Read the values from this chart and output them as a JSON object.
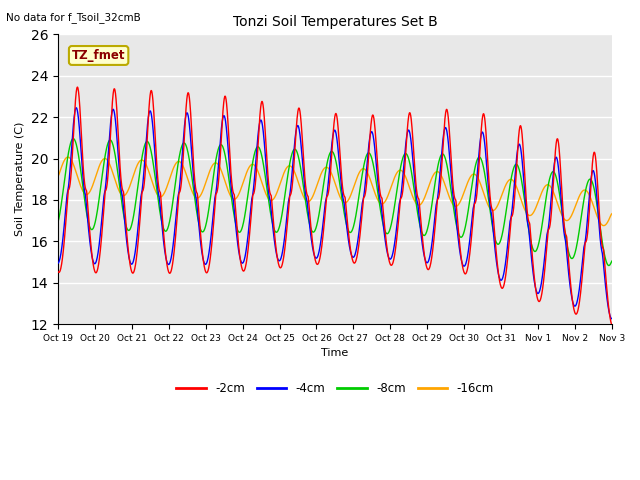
{
  "title": "Tonzi Soil Temperatures Set B",
  "ylabel": "Soil Temperature (C)",
  "xlabel": "Time",
  "top_left_text": "No data for f_Tsoil_32cmB",
  "annotation_text": "TZ_fmet",
  "ylim": [
    12,
    26
  ],
  "yticks": [
    12,
    14,
    16,
    18,
    20,
    22,
    24,
    26
  ],
  "x_labels": [
    "Oct 19",
    "Oct 20",
    "Oct 21",
    "Oct 22",
    "Oct 23",
    "Oct 24",
    "Oct 25",
    "Oct 26",
    "Oct 27",
    "Oct 28",
    "Oct 29",
    "Oct 30",
    "Oct 31",
    "Nov 1",
    "Nov 2",
    "Nov 3"
  ],
  "colors": {
    "2cm": "#ff0000",
    "4cm": "#0000ff",
    "8cm": "#00cc00",
    "16cm": "#ffa500"
  },
  "legend_labels": [
    "-2cm",
    "-4cm",
    "-8cm",
    "-16cm"
  ],
  "background_color": "#e8e8e8",
  "n_days": 15,
  "samples_per_day": 144
}
